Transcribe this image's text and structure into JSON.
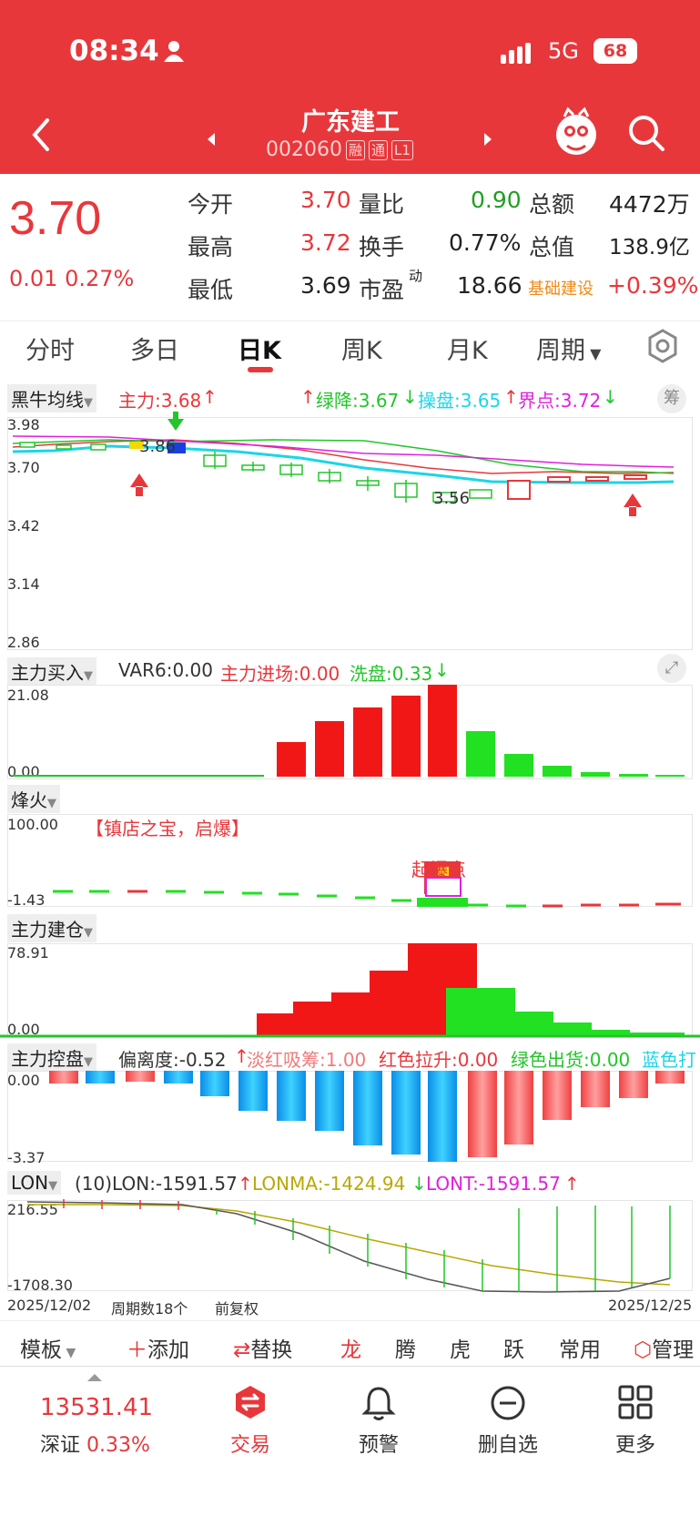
{
  "status": {
    "time": "08:34",
    "network": "5G",
    "battery": "68"
  },
  "header": {
    "title": "广东建工",
    "code": "002060",
    "tags": [
      "融",
      "通",
      "L1"
    ]
  },
  "quote": {
    "price": "3.70",
    "change": "0.01",
    "pct": "0.27%",
    "c1": [
      {
        "label": "今开",
        "value": "3.70"
      },
      {
        "label": "最高",
        "value": "3.72"
      },
      {
        "label": "最低",
        "value": "3.69"
      }
    ],
    "c2": [
      {
        "label": "量比",
        "value": "0.90"
      },
      {
        "label": "换手",
        "value": "0.77%"
      },
      {
        "label": "市盈",
        "sup": "动",
        "value": "18.66"
      }
    ],
    "c3": [
      {
        "label": "总额",
        "value": "4472万"
      },
      {
        "label": "总值",
        "value": "138.9亿"
      },
      {
        "label": "基础建设",
        "value": "+0.39%"
      }
    ]
  },
  "tabs": [
    "分时",
    "多日",
    "日K",
    "周K",
    "月K",
    "周期"
  ],
  "active_tab": "日K",
  "p1": {
    "chip": "黑牛均线",
    "i1": "主力:3.68",
    "i2": "绿降:3.67",
    "i3": "操盘:3.65",
    "i4": "界点:3.72",
    "badge": "筹",
    "y": [
      "3.98",
      "3.70",
      "3.42",
      "3.14",
      "2.86"
    ],
    "hi": "3.86",
    "lo": "3.56"
  },
  "p2": {
    "chip": "主力买入",
    "i1": "VAR6:0.00",
    "i2": "主力进场:0.00",
    "i3": "洗盘:0.33",
    "y": [
      "21.08",
      "0.00"
    ]
  },
  "p3": {
    "chip": "烽火",
    "note": "【镇店之宝，启爆】",
    "y": [
      "100.00",
      "-1.43"
    ],
    "mark": "起爆点"
  },
  "p4": {
    "chip": "主力建仓",
    "y": [
      "78.91",
      "0.00"
    ]
  },
  "p5": {
    "chip": "主力控盘",
    "i1": "偏离度:-0.52",
    "i2": "淡红吸筹:1.00",
    "i3": "红色拉升:0.00",
    "i4": "绿色出货:0.00",
    "i5": "蓝色打",
    "y": [
      "0.00",
      "-3.37"
    ]
  },
  "p6": {
    "chip": "LON",
    "i1": "(10)LON:-1591.57",
    "i2": "LONMA:-1424.94",
    "i3": "LONT:-1591.57",
    "y": [
      "216.55",
      "-1708.30"
    ]
  },
  "footer_axis": {
    "start": "2025/12/02",
    "count": "周期数18个",
    "adj": "前复权",
    "end": "2025/12/25"
  },
  "toolbar": {
    "template": "模板",
    "add": "添加",
    "replace": "替换",
    "items": [
      "龙",
      "腾",
      "虎",
      "跃",
      "常用"
    ],
    "manage": "管理"
  },
  "nav": {
    "index_value": "13531.41",
    "index_name": "深证",
    "index_pct": "0.33%",
    "trade": "交易",
    "alert": "预警",
    "remove": "删自选",
    "more": "更多"
  },
  "colors": {
    "red": "#e8373b",
    "green": "#22c52a",
    "cyan": "#1ad6e6",
    "magenta": "#e020e0"
  }
}
